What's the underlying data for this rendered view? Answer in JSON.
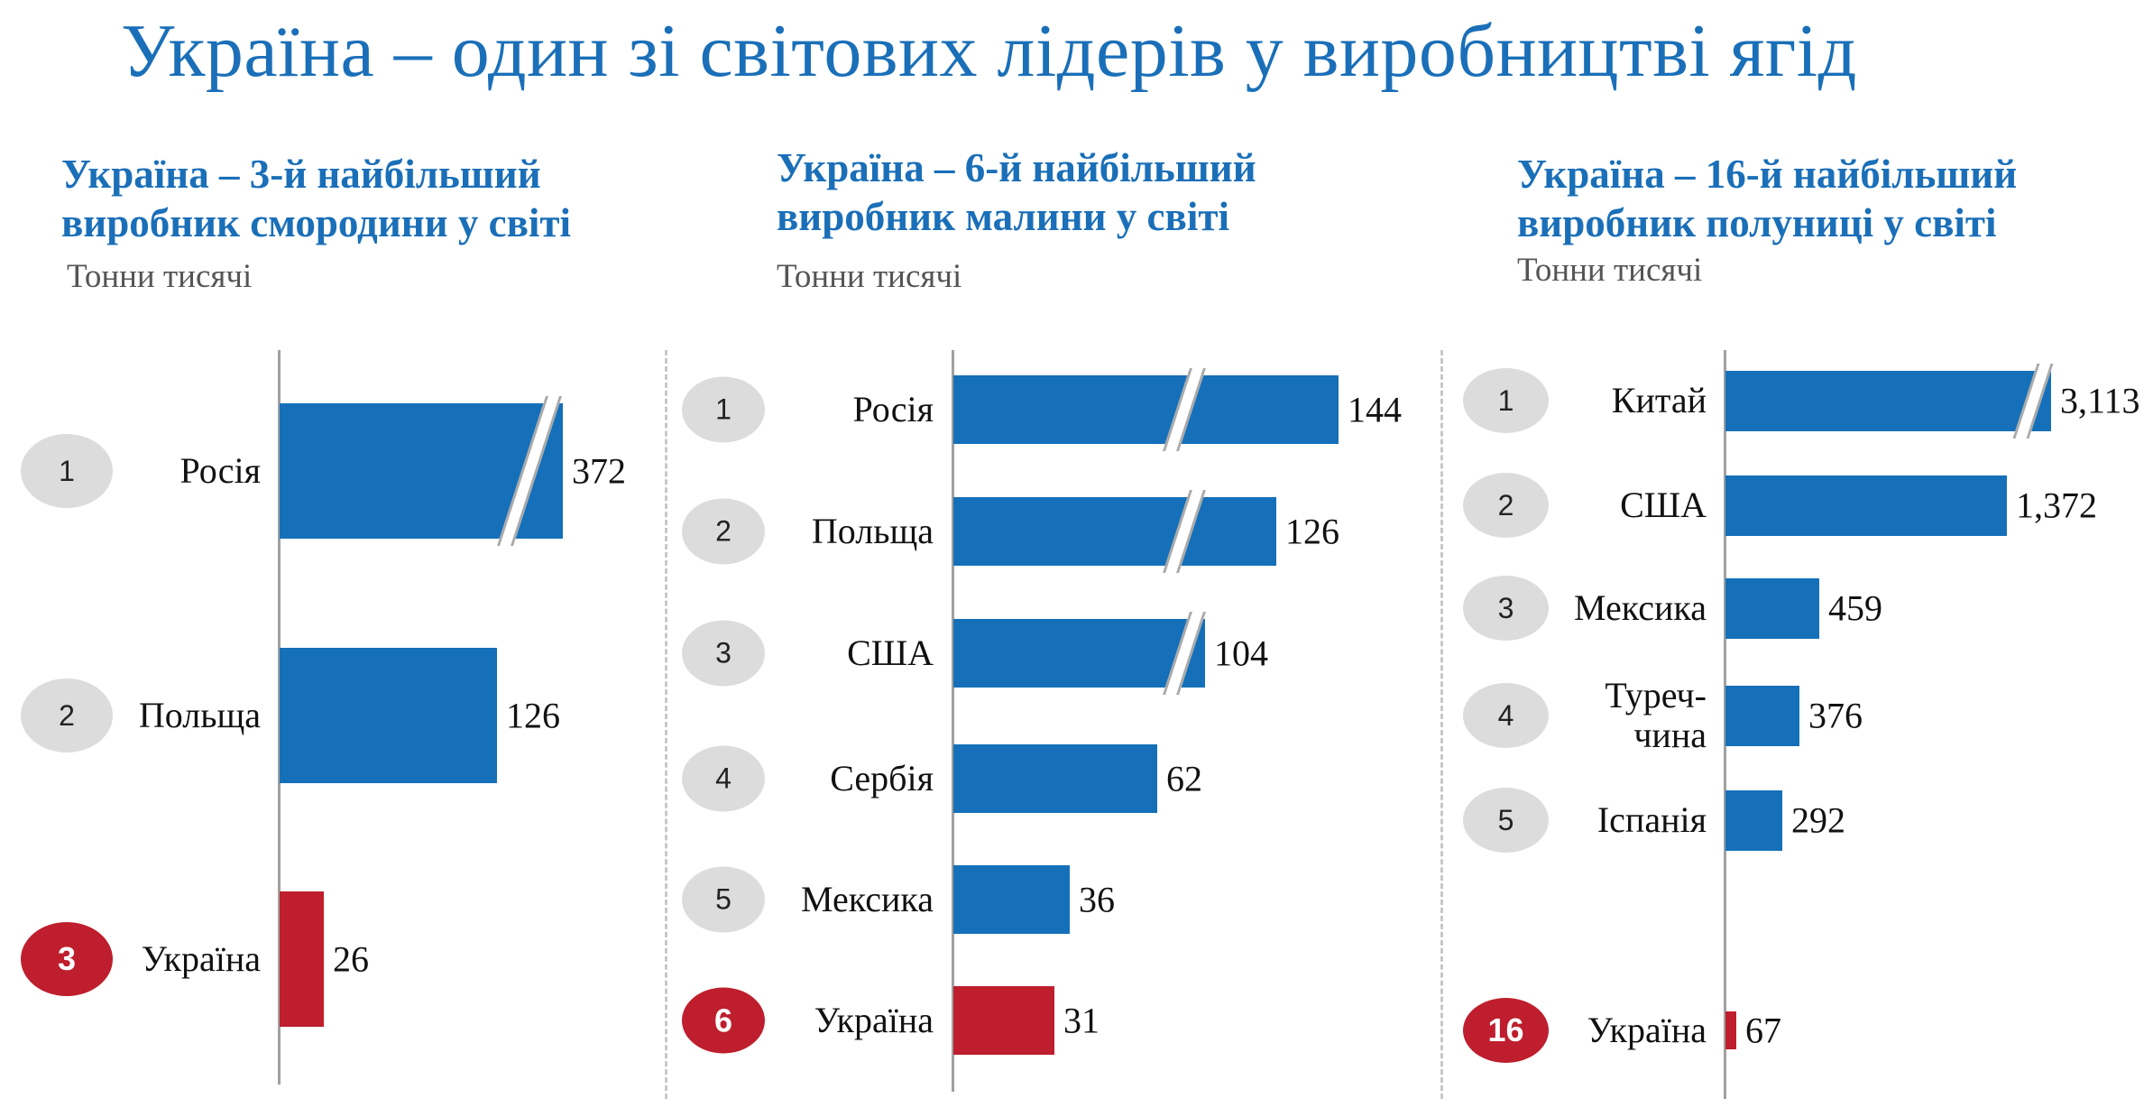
{
  "title": "Україна – один зі світових лідерів у виробництві ягід",
  "colors": {
    "title": "#1a6fb8",
    "bar": "#1570b9",
    "ukraine": "#be1e2d",
    "rank_circle": "#dcdcdc"
  },
  "chart_data": [
    {
      "type": "bar",
      "title_line1": "Україна – 3-й найбільший",
      "title_line2": "виробник смородини у світі",
      "unit": "Тонни тисячі",
      "orientation": "horizontal",
      "axis_break": true,
      "rows": [
        {
          "rank": "1",
          "country": "Росія",
          "value": 372,
          "value_label": "372",
          "highlight": false,
          "broken": true
        },
        {
          "rank": "2",
          "country": "Польща",
          "value": 126,
          "value_label": "126",
          "highlight": false,
          "broken": false
        },
        {
          "rank": "3",
          "country": "Україна",
          "value": 26,
          "value_label": "26",
          "highlight": true,
          "broken": false
        }
      ]
    },
    {
      "type": "bar",
      "title_line1": "Україна – 6-й найбільший",
      "title_line2": "виробник малини у світі",
      "unit": "Тонни тисячі",
      "orientation": "horizontal",
      "axis_break": true,
      "rows": [
        {
          "rank": "1",
          "country": "Росія",
          "value": 144,
          "value_label": "144",
          "highlight": false,
          "broken": true
        },
        {
          "rank": "2",
          "country": "Польща",
          "value": 126,
          "value_label": "126",
          "highlight": false,
          "broken": true
        },
        {
          "rank": "3",
          "country": "США",
          "value": 104,
          "value_label": "104",
          "highlight": false,
          "broken": true
        },
        {
          "rank": "4",
          "country": "Сербія",
          "value": 62,
          "value_label": "62",
          "highlight": false,
          "broken": false
        },
        {
          "rank": "5",
          "country": "Мексика",
          "value": 36,
          "value_label": "36",
          "highlight": false,
          "broken": false
        },
        {
          "rank": "6",
          "country": "Україна",
          "value": 31,
          "value_label": "31",
          "highlight": true,
          "broken": false
        }
      ]
    },
    {
      "type": "bar",
      "title_line1": "Україна – 16-й найбільший",
      "title_line2": "виробник полуниці у світі",
      "unit": "Тонни тисячі",
      "orientation": "horizontal",
      "axis_break": true,
      "rows": [
        {
          "rank": "1",
          "country": "Китай",
          "value": 3113,
          "value_label": "3,113",
          "highlight": false,
          "broken": true
        },
        {
          "rank": "2",
          "country": "США",
          "value": 1372,
          "value_label": "1,372",
          "highlight": false,
          "broken": false
        },
        {
          "rank": "3",
          "country": "Мексика",
          "value": 459,
          "value_label": "459",
          "highlight": false,
          "broken": false
        },
        {
          "rank": "4",
          "country": "Туреч-\nчина",
          "value": 376,
          "value_label": "376",
          "highlight": false,
          "broken": false
        },
        {
          "rank": "5",
          "country": "Іспанія",
          "value": 292,
          "value_label": "292",
          "highlight": false,
          "broken": false
        },
        {
          "rank": "16",
          "country": "Україна",
          "value": 67,
          "value_label": "67",
          "highlight": true,
          "broken": false
        }
      ]
    }
  ]
}
